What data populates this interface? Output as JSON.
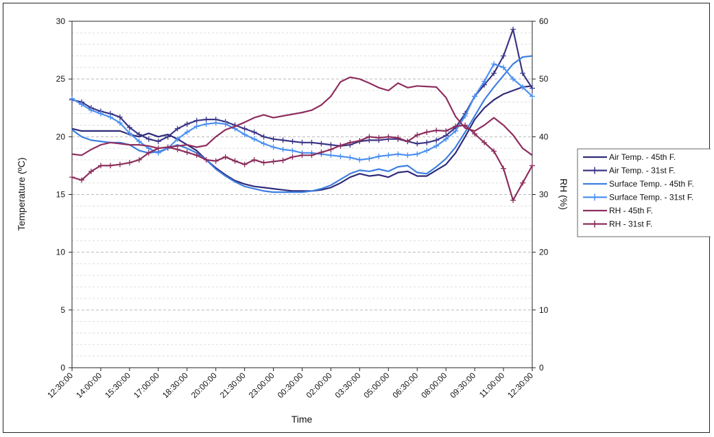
{
  "chart_data": {
    "type": "line",
    "xlabel": "Time",
    "ylabel": "Temperature (ºC)",
    "y2label": "RH (%)",
    "ylim": [
      0,
      30
    ],
    "y2lim": [
      0,
      60
    ],
    "yticks": [
      "0",
      "5",
      "10",
      "15",
      "20",
      "25",
      "30"
    ],
    "y2ticks": [
      "0",
      "10",
      "20",
      "30",
      "40",
      "50",
      "60"
    ],
    "grid": "horizontal dashed minor and major",
    "legend_position": "right",
    "x_tick_labels": [
      "12:30:00",
      "14:00:00",
      "15:30:00",
      "17:00:00",
      "18:30:00",
      "20:00:00",
      "21:30:00",
      "23:00:00",
      "00:30:00",
      "02:00:00",
      "03:30:00",
      "05:00:00",
      "06:30:00",
      "08:00:00",
      "09:30:00",
      "11:00:00",
      "12:30:00"
    ],
    "x_hours": [
      0,
      1.5,
      3,
      4.5,
      6,
      7.5,
      9,
      10.5,
      12,
      13.5,
      15,
      16.5,
      18,
      19.5,
      21,
      22.5,
      24
    ],
    "series": [
      {
        "name": "Air Temp. - 45th F.",
        "axis": "left",
        "color": "#2e2a7a",
        "marker": "none",
        "x": [
          0,
          0.5,
          1,
          1.5,
          2,
          2.5,
          3,
          3.5,
          4,
          4.5,
          5,
          5.5,
          6,
          6.5,
          7,
          7.5,
          8,
          8.5,
          9,
          9.5,
          10,
          10.5,
          11,
          11.5,
          12,
          12.5,
          13,
          13.5,
          14,
          14.5,
          15,
          15.5,
          16,
          16.5,
          17,
          17.5,
          18,
          18.5,
          19,
          19.5,
          20,
          20.5,
          21,
          21.5,
          22,
          22.5,
          23,
          23.5,
          24
        ],
        "values": [
          20.7,
          20.5,
          20.5,
          20.5,
          20.5,
          20.5,
          20.2,
          20.0,
          20.3,
          20.0,
          20.2,
          19.8,
          19.3,
          18.8,
          18.0,
          17.3,
          16.7,
          16.2,
          15.9,
          15.7,
          15.6,
          15.5,
          15.4,
          15.3,
          15.3,
          15.3,
          15.4,
          15.6,
          16.0,
          16.5,
          16.8,
          16.6,
          16.7,
          16.5,
          16.9,
          17.0,
          16.6,
          16.6,
          17.1,
          17.6,
          18.6,
          20.0,
          21.5,
          22.5,
          23.2,
          23.7,
          24.0,
          24.3,
          24.4
        ]
      },
      {
        "name": "Air Temp. - 31st F.",
        "axis": "left",
        "color": "#3a3585",
        "marker": "plus",
        "x": [
          0,
          0.5,
          1,
          1.5,
          2,
          2.5,
          3,
          3.5,
          4,
          4.5,
          5,
          5.5,
          6,
          6.5,
          7,
          7.5,
          8,
          8.5,
          9,
          9.5,
          10,
          10.5,
          11,
          11.5,
          12,
          12.5,
          13,
          13.5,
          14,
          14.5,
          15,
          15.5,
          16,
          16.5,
          17,
          17.5,
          18,
          18.5,
          19,
          19.5,
          20,
          20.5,
          21,
          21.5,
          22,
          22.5,
          23,
          23.5,
          24
        ],
        "values": [
          23.2,
          23.0,
          22.5,
          22.2,
          22.0,
          21.7,
          20.8,
          20.2,
          19.8,
          19.6,
          20.0,
          20.7,
          21.1,
          21.4,
          21.5,
          21.5,
          21.3,
          21.0,
          20.7,
          20.4,
          20.0,
          19.8,
          19.7,
          19.6,
          19.5,
          19.5,
          19.4,
          19.3,
          19.2,
          19.3,
          19.6,
          19.7,
          19.7,
          19.8,
          19.8,
          19.6,
          19.4,
          19.5,
          19.7,
          20.1,
          20.8,
          22.0,
          23.5,
          24.5,
          25.5,
          27.0,
          29.3,
          25.5,
          24.2
        ]
      },
      {
        "name": "Surface Temp. - 45th F.",
        "axis": "left",
        "color": "#3d7fe0",
        "marker": "none",
        "x": [
          0,
          0.5,
          1,
          1.5,
          2,
          2.5,
          3,
          3.5,
          4,
          4.5,
          5,
          5.5,
          6,
          6.5,
          7,
          7.5,
          8,
          8.5,
          9,
          9.5,
          10,
          10.5,
          11,
          11.5,
          12,
          12.5,
          13,
          13.5,
          14,
          14.5,
          15,
          15.5,
          16,
          16.5,
          17,
          17.5,
          18,
          18.5,
          19,
          19.5,
          20,
          20.5,
          21,
          21.5,
          22,
          22.5,
          23,
          23.5,
          24
        ],
        "values": [
          20.6,
          20.0,
          19.7,
          19.6,
          19.5,
          19.5,
          19.3,
          18.8,
          18.6,
          18.7,
          19.0,
          19.3,
          19.0,
          18.6,
          18.0,
          17.2,
          16.6,
          16.1,
          15.7,
          15.5,
          15.3,
          15.2,
          15.2,
          15.2,
          15.2,
          15.3,
          15.5,
          15.8,
          16.3,
          16.8,
          17.1,
          17.0,
          17.2,
          17.0,
          17.4,
          17.5,
          16.9,
          16.8,
          17.4,
          18.1,
          19.1,
          20.4,
          21.8,
          23.2,
          24.3,
          25.3,
          26.3,
          26.9,
          27.0
        ]
      },
      {
        "name": "Surface Temp. - 31st F.",
        "axis": "left",
        "color": "#4b8ff0",
        "marker": "plus",
        "x": [
          0,
          0.5,
          1,
          1.5,
          2,
          2.5,
          3,
          3.5,
          4,
          4.5,
          5,
          5.5,
          6,
          6.5,
          7,
          7.5,
          8,
          8.5,
          9,
          9.5,
          10,
          10.5,
          11,
          11.5,
          12,
          12.5,
          13,
          13.5,
          14,
          14.5,
          15,
          15.5,
          16,
          16.5,
          17,
          17.5,
          18,
          18.5,
          19,
          19.5,
          20,
          20.5,
          21,
          21.5,
          22,
          22.5,
          23,
          23.5,
          24
        ],
        "values": [
          23.3,
          22.8,
          22.3,
          22.0,
          21.7,
          21.2,
          20.3,
          19.6,
          19.0,
          18.6,
          19.0,
          19.8,
          20.4,
          20.9,
          21.1,
          21.2,
          21.1,
          20.7,
          20.2,
          19.8,
          19.4,
          19.1,
          18.9,
          18.8,
          18.6,
          18.6,
          18.5,
          18.4,
          18.3,
          18.2,
          18.0,
          18.1,
          18.3,
          18.4,
          18.5,
          18.4,
          18.5,
          18.8,
          19.2,
          19.8,
          20.5,
          21.8,
          23.5,
          24.8,
          26.3,
          26.0,
          25.0,
          24.3,
          23.5
        ]
      },
      {
        "name": "RH - 45th F.",
        "axis": "right",
        "color": "#8e2e5e",
        "marker": "none",
        "x": [
          0,
          0.5,
          1,
          1.5,
          2,
          2.5,
          3,
          3.5,
          4,
          4.5,
          5,
          5.5,
          6,
          6.5,
          7,
          7.5,
          8,
          8.5,
          9,
          9.5,
          10,
          10.5,
          11,
          11.5,
          12,
          12.5,
          13,
          13.5,
          14,
          14.5,
          15,
          15.5,
          16,
          16.5,
          17,
          17.5,
          18,
          18.5,
          19,
          19.5,
          20,
          20.5,
          21,
          21.5,
          22,
          22.5,
          23,
          23.5,
          24
        ],
        "values": [
          37.0,
          36.8,
          37.8,
          38.6,
          39.0,
          38.8,
          38.6,
          38.6,
          38.4,
          38.0,
          38.2,
          38.4,
          38.6,
          38.2,
          38.5,
          40.0,
          41.2,
          41.8,
          42.5,
          43.3,
          43.8,
          43.3,
          43.6,
          43.9,
          44.2,
          44.6,
          45.5,
          47.0,
          49.5,
          50.3,
          50.0,
          49.3,
          48.5,
          48.0,
          49.3,
          48.5,
          48.8,
          48.7,
          48.6,
          46.8,
          43.5,
          41.5,
          41.0,
          42.0,
          43.3,
          42.0,
          40.3,
          38.0,
          36.8
        ]
      },
      {
        "name": "RH - 31st F.",
        "axis": "right",
        "color": "#8a2d5c",
        "marker": "plus",
        "x": [
          0,
          0.5,
          1,
          1.5,
          2,
          2.5,
          3,
          3.5,
          4,
          4.5,
          5,
          5.5,
          6,
          6.5,
          7,
          7.5,
          8,
          8.5,
          9,
          9.5,
          10,
          10.5,
          11,
          11.5,
          12,
          12.5,
          13,
          13.5,
          14,
          14.5,
          15,
          15.5,
          16,
          16.5,
          17,
          17.5,
          18,
          18.5,
          19,
          19.5,
          20,
          20.5,
          21,
          21.5,
          22,
          22.5,
          23,
          23.5,
          24
        ],
        "values": [
          33.0,
          32.5,
          34.0,
          35.0,
          35.0,
          35.2,
          35.5,
          36.0,
          37.2,
          38.0,
          38.2,
          37.8,
          37.3,
          36.8,
          36.0,
          35.8,
          36.5,
          35.8,
          35.2,
          36.0,
          35.5,
          35.7,
          35.9,
          36.5,
          36.8,
          36.8,
          37.3,
          37.8,
          38.5,
          39.0,
          39.3,
          40.0,
          39.8,
          40.0,
          39.8,
          39.2,
          40.3,
          40.8,
          41.1,
          41.0,
          41.8,
          42.0,
          40.5,
          39.0,
          37.5,
          34.5,
          29.0,
          32.0,
          35.0
        ]
      }
    ]
  }
}
